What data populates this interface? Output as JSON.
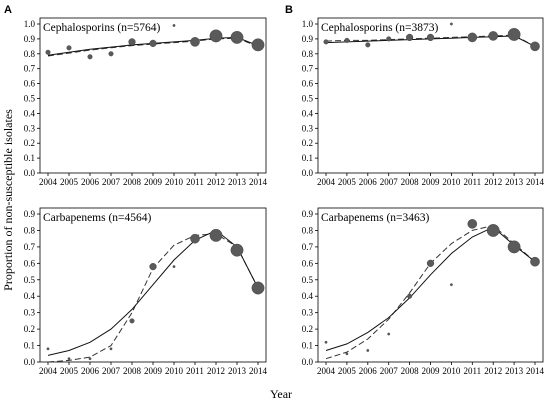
{
  "figure": {
    "ylabel": "Proportion of non-susceptible isolates",
    "xlabel": "Year"
  },
  "chart_data": [
    {
      "panel": "A",
      "type": "scatter",
      "title": "Cephalosporins  (n=5764)",
      "x": [
        2004,
        2005,
        2006,
        2007,
        2008,
        2009,
        2010,
        2011,
        2012,
        2013,
        2014
      ],
      "values": [
        0.81,
        0.84,
        0.78,
        0.8,
        0.88,
        0.87,
        0.99,
        0.88,
        0.92,
        0.91,
        0.86
      ],
      "sizes": [
        2,
        2,
        2,
        2,
        3,
        3,
        1,
        4,
        5,
        5,
        5
      ],
      "fit_solid": [
        0.79,
        0.81,
        0.83,
        0.845,
        0.86,
        0.87,
        0.88,
        0.89,
        0.905,
        0.91,
        0.855
      ],
      "fit_dashed": [
        0.785,
        0.805,
        0.825,
        0.84,
        0.855,
        0.865,
        0.875,
        0.885,
        0.9,
        0.905,
        0.85
      ],
      "xticks": [
        "2004",
        "2005",
        "2006",
        "2007",
        "2008",
        "2009",
        "2010",
        "2011",
        "2012",
        "2013",
        "2014"
      ],
      "yticks": [
        "0.0",
        "0.1",
        "0.2",
        "0.3",
        "0.4",
        "0.5",
        "0.6",
        "0.7",
        "0.8",
        "0.9",
        "1.0"
      ],
      "ylim": [
        0,
        1
      ]
    },
    {
      "panel": "B",
      "type": "scatter",
      "title": "Cephalosporins (n=3873)",
      "x": [
        2004,
        2005,
        2006,
        2007,
        2008,
        2009,
        2010,
        2011,
        2012,
        2013,
        2014
      ],
      "values": [
        0.88,
        0.89,
        0.86,
        0.9,
        0.91,
        0.91,
        1.0,
        0.91,
        0.92,
        0.93,
        0.85
      ],
      "sizes": [
        2,
        2,
        2,
        2,
        3,
        3,
        1,
        4,
        4,
        5,
        4
      ],
      "fit_solid": [
        0.875,
        0.88,
        0.885,
        0.89,
        0.895,
        0.9,
        0.905,
        0.91,
        0.915,
        0.92,
        0.85
      ],
      "fit_dashed": [
        0.885,
        0.89,
        0.89,
        0.895,
        0.9,
        0.905,
        0.91,
        0.915,
        0.92,
        0.925,
        0.85
      ],
      "xticks": [
        "2004",
        "2005",
        "2006",
        "2007",
        "2008",
        "2009",
        "2010",
        "2011",
        "2012",
        "2013",
        "2014"
      ],
      "yticks": [
        "0.0",
        "0.1",
        "0.2",
        "0.3",
        "0.4",
        "0.5",
        "0.6",
        "0.7",
        "0.8",
        "0.9",
        "1.0"
      ],
      "ylim": [
        0,
        1
      ]
    },
    {
      "panel": "A",
      "type": "scatter",
      "title": "Carbapenems (n=4564)",
      "x": [
        2004,
        2005,
        2006,
        2007,
        2008,
        2009,
        2010,
        2011,
        2012,
        2013,
        2014
      ],
      "values": [
        0.08,
        0.02,
        0.02,
        0.08,
        0.25,
        0.58,
        0.58,
        0.75,
        0.77,
        0.68,
        0.45
      ],
      "sizes": [
        1,
        1,
        1,
        1,
        2,
        3,
        1,
        4,
        5,
        5,
        5
      ],
      "fit_solid": [
        0.04,
        0.07,
        0.12,
        0.2,
        0.32,
        0.47,
        0.62,
        0.74,
        0.8,
        0.7,
        0.45
      ],
      "fit_dashed": [
        0.0,
        0.01,
        0.03,
        0.1,
        0.3,
        0.57,
        0.71,
        0.77,
        0.78,
        0.7,
        0.45
      ],
      "xticks": [
        "2004",
        "2005",
        "2006",
        "2007",
        "2008",
        "2009",
        "2010",
        "2011",
        "2012",
        "2013",
        "2014"
      ],
      "yticks": [
        "0.0",
        "0.1",
        "0.2",
        "0.3",
        "0.4",
        "0.5",
        "0.6",
        "0.7",
        "0.8",
        "0.9"
      ],
      "ylim": [
        0,
        0.9
      ]
    },
    {
      "panel": "B",
      "type": "scatter",
      "title": "Carbapenems (n=3463)",
      "x": [
        2004,
        2005,
        2006,
        2007,
        2008,
        2009,
        2010,
        2011,
        2012,
        2013,
        2014
      ],
      "values": [
        0.12,
        0.05,
        0.07,
        0.17,
        0.4,
        0.6,
        0.47,
        0.84,
        0.8,
        0.7,
        0.61
      ],
      "sizes": [
        1,
        1,
        1,
        1,
        2,
        3,
        1,
        4,
        5,
        5,
        4
      ],
      "fit_solid": [
        0.07,
        0.11,
        0.18,
        0.27,
        0.39,
        0.53,
        0.66,
        0.76,
        0.82,
        0.71,
        0.61
      ],
      "fit_dashed": [
        0.02,
        0.06,
        0.14,
        0.26,
        0.42,
        0.6,
        0.72,
        0.8,
        0.83,
        0.72,
        0.61
      ],
      "xticks": [
        "2004",
        "2005",
        "2006",
        "2007",
        "2008",
        "2009",
        "2010",
        "2011",
        "2012",
        "2013",
        "2014"
      ],
      "yticks": [
        "0.0",
        "0.1",
        "0.2",
        "0.3",
        "0.4",
        "0.5",
        "0.6",
        "0.7",
        "0.8",
        "0.9"
      ],
      "ylim": [
        0,
        0.9
      ]
    }
  ]
}
